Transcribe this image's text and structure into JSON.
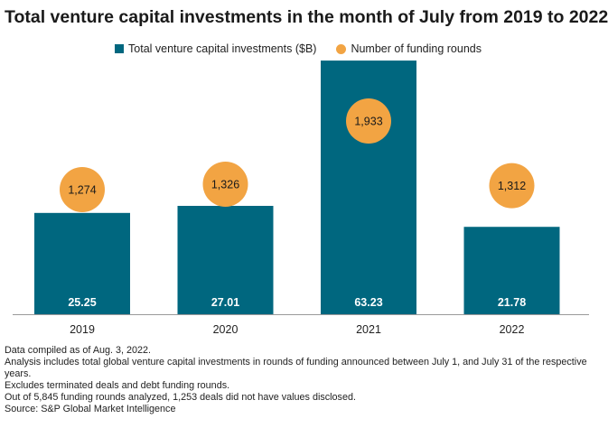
{
  "title": "Total venture capital investments in the month of July from 2019 to 2022",
  "legend": {
    "bar_label": "Total venture capital investments ($B)",
    "dot_label": "Number of funding rounds"
  },
  "colors": {
    "bar": "#00677f",
    "dot": "#f2a443",
    "axis": "#999999"
  },
  "chart_data": {
    "type": "bar",
    "categories": [
      "2019",
      "2020",
      "2021",
      "2022"
    ],
    "series": [
      {
        "name": "Total venture capital investments ($B)",
        "values": [
          25.25,
          27.01,
          63.23,
          21.78
        ],
        "labels": [
          "25.25",
          "27.01",
          "63.23",
          "21.78"
        ]
      },
      {
        "name": "Number of funding rounds",
        "values": [
          1274,
          1326,
          1933,
          1312
        ],
        "labels": [
          "1,274",
          "1,326",
          "1,933",
          "1,312"
        ]
      }
    ],
    "ylim": [
      0,
      70
    ]
  },
  "notes": [
    "Data compiled as of Aug. 3, 2022.",
    "Analysis includes total global venture capital investments in rounds of funding announced between July 1, and July 31 of the respective years.",
    "Excludes terminated deals and debt funding rounds.",
    "Out of 5,845 funding rounds analyzed, 1,253 deals did not have values disclosed.",
    "Source: S&P Global Market Intelligence"
  ]
}
